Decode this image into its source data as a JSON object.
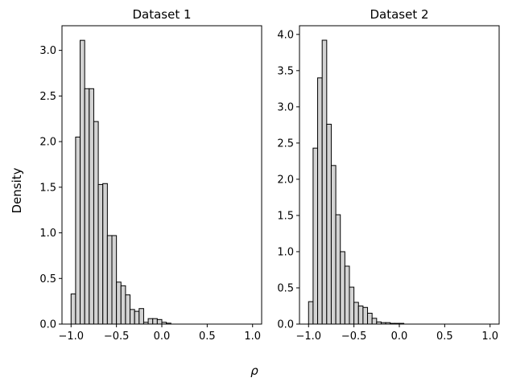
{
  "figure": {
    "supylabel": "Density",
    "supxlabel": "ρ"
  },
  "chart_data": [
    {
      "type": "bar",
      "title": "Dataset 1",
      "xlabel": "",
      "ylabel": "",
      "xlim": [
        -1.1,
        1.1
      ],
      "ylim": [
        0,
        3.27
      ],
      "bin_width": 0.05,
      "bins_start": [
        -1.0,
        -0.95,
        -0.9,
        -0.85,
        -0.8,
        -0.75,
        -0.7,
        -0.65,
        -0.6,
        -0.55,
        -0.5,
        -0.45,
        -0.4,
        -0.35,
        -0.3,
        -0.25,
        -0.2,
        -0.15,
        -0.1,
        -0.05,
        0.0,
        0.05
      ],
      "values": [
        0.33,
        2.05,
        3.11,
        2.58,
        2.58,
        2.22,
        1.53,
        1.54,
        0.97,
        0.97,
        0.46,
        0.42,
        0.32,
        0.16,
        0.14,
        0.17,
        0.02,
        0.06,
        0.06,
        0.05,
        0.02,
        0.01
      ],
      "xticks": [
        -1.0,
        -0.5,
        0.0,
        0.5,
        1.0
      ],
      "xtick_labels": [
        "−1.0",
        "−0.5",
        "0.0",
        "0.5",
        "1.0"
      ],
      "yticks": [
        0,
        0.5,
        1.0,
        1.5,
        2.0,
        2.5,
        3.0
      ],
      "ytick_labels": [
        "0.0",
        "0.5",
        "1.0",
        "1.5",
        "2.0",
        "2.5",
        "3.0"
      ]
    },
    {
      "type": "bar",
      "title": "Dataset 2",
      "xlabel": "",
      "ylabel": "",
      "xlim": [
        -1.1,
        1.1
      ],
      "ylim": [
        0,
        4.12
      ],
      "bin_width": 0.05,
      "bins_start": [
        -1.0,
        -0.95,
        -0.9,
        -0.85,
        -0.8,
        -0.75,
        -0.7,
        -0.65,
        -0.6,
        -0.55,
        -0.5,
        -0.45,
        -0.4,
        -0.35,
        -0.3,
        -0.25,
        -0.2,
        -0.15,
        -0.1,
        -0.05,
        0.0
      ],
      "values": [
        0.31,
        2.43,
        3.4,
        3.92,
        2.76,
        2.19,
        1.51,
        1.0,
        0.8,
        0.51,
        0.3,
        0.25,
        0.23,
        0.15,
        0.08,
        0.03,
        0.02,
        0.02,
        0.01,
        0.01,
        0.01
      ],
      "xticks": [
        -1.0,
        -0.5,
        0.0,
        0.5,
        1.0
      ],
      "xtick_labels": [
        "−1.0",
        "−0.5",
        "0.0",
        "0.5",
        "1.0"
      ],
      "yticks": [
        0,
        0.5,
        1.0,
        1.5,
        2.0,
        2.5,
        3.0,
        3.5,
        4.0
      ],
      "ytick_labels": [
        "0.0",
        "0.5",
        "1.0",
        "1.5",
        "2.0",
        "2.5",
        "3.0",
        "3.5",
        "4.0"
      ]
    }
  ]
}
